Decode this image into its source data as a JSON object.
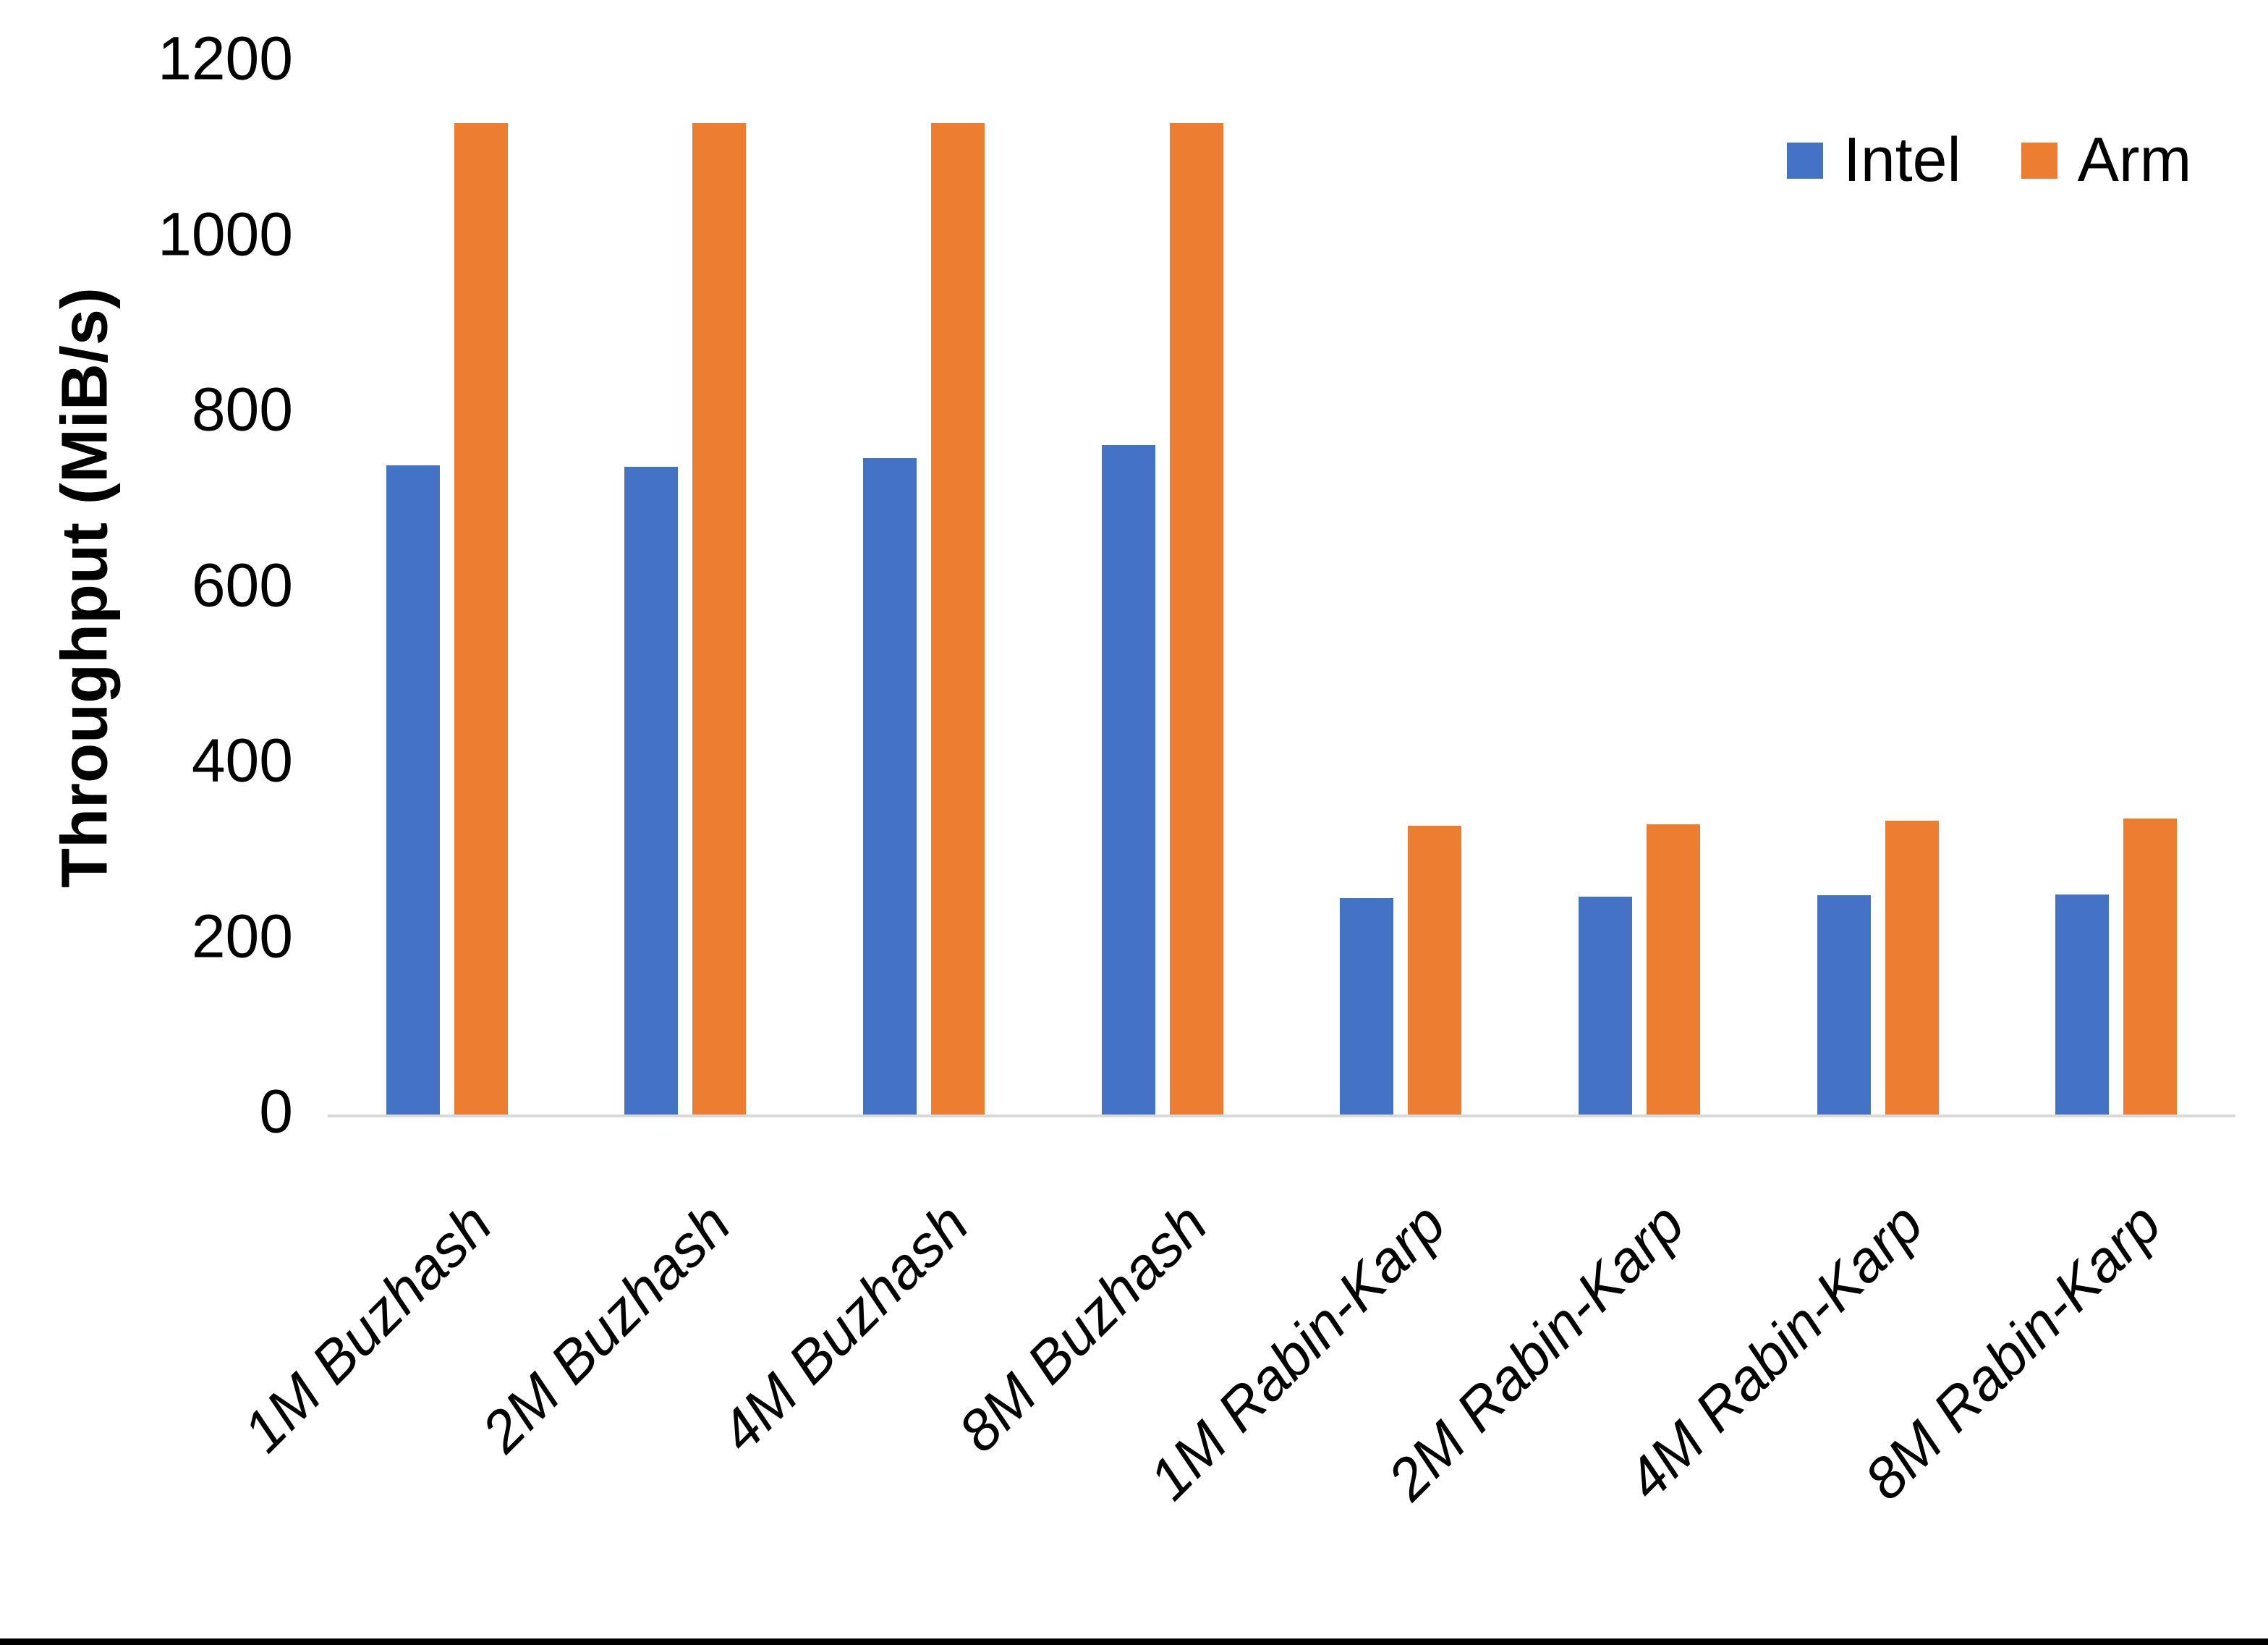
{
  "figure": {
    "background_color": "#ffffff",
    "bottom_border_color": "#000000",
    "axis_line_color": "#D9D9D9",
    "text_color": "#000000"
  },
  "chart_data": {
    "type": "bar",
    "title": "",
    "xlabel": "",
    "ylabel": "Throughput (MiB/s)",
    "ylim": [
      0,
      1200
    ],
    "yticks": [
      0,
      200,
      400,
      600,
      800,
      1000,
      1200
    ],
    "grid": false,
    "legend_position": "top-right",
    "categories": [
      "1M Buzhash",
      "2M Buzhash",
      "4M Buzhash",
      "8M Buzhash",
      "1M Rabin-Karp",
      "2M Rabin-Karp",
      "4M Rabin-Karp",
      "8M Rabin-Karp"
    ],
    "series": [
      {
        "name": "Intel",
        "color": "#4472C4",
        "values": [
          740,
          738,
          748,
          763,
          247,
          248,
          250,
          251
        ]
      },
      {
        "name": "Arm",
        "color": "#ED7D31",
        "values": [
          1130,
          1130,
          1130,
          1130,
          329,
          331,
          335,
          337
        ]
      }
    ]
  }
}
